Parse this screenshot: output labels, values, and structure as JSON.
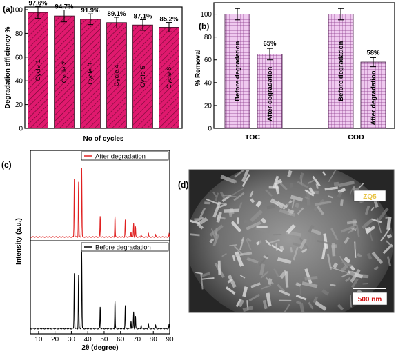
{
  "panel_a": {
    "label": "(a)",
    "chart_data": {
      "type": "bar",
      "categories": [
        "Cycle 1",
        "Cycle 2",
        "Cycle 3",
        "Cycle 4",
        "Cycle 5",
        "Cycle 6"
      ],
      "values": [
        97.6,
        94.7,
        91.9,
        89.1,
        87.1,
        85.2
      ],
      "errors": [
        5,
        5,
        4.5,
        4.5,
        4.5,
        4
      ],
      "data_labels": [
        "97.6%",
        "94.7%",
        "91.9%",
        "89.1%",
        "87.1%",
        "85.2%"
      ],
      "ylabel": "Degradation efficiency %",
      "xlabel": "No of cycles",
      "ylim": [
        0,
        100
      ],
      "yticks": [
        "0",
        "20",
        "40",
        "60",
        "80",
        "100"
      ],
      "bar_color": "#e0196e"
    }
  },
  "panel_b": {
    "label": "(b)",
    "chart_data": {
      "type": "bar",
      "categories": [
        "TOC",
        "COD"
      ],
      "series": [
        {
          "values": [
            100,
            100
          ],
          "bar_labels": [
            "Before degradation",
            "Before degradation"
          ]
        },
        {
          "values": [
            65,
            58
          ],
          "bar_labels": [
            "After degradation",
            "After degradation"
          ]
        }
      ],
      "errors": [
        5,
        4
      ],
      "data_labels": [
        "65%",
        "58%"
      ],
      "ylabel": "% Removal",
      "ylim": [
        0,
        110
      ],
      "yticks": [
        "0",
        "20",
        "40",
        "60",
        "80",
        "100"
      ],
      "bar_color": "#e8b6e8",
      "grid_color": "#7a3a7a"
    }
  },
  "panel_c": {
    "label": "(c)",
    "chart_data": {
      "type": "line",
      "ylabel": "Intensity (a.u.)",
      "xlabel": "2θ (degree)",
      "xlim": [
        5,
        90
      ],
      "xticks": [
        "10",
        "20",
        "30",
        "40",
        "50",
        "60",
        "70",
        "80",
        "90"
      ],
      "series": [
        {
          "name": "After degradation",
          "color": "#e02020",
          "peaks": [
            [
              31.8,
              0.85
            ],
            [
              34.4,
              0.8
            ],
            [
              36.3,
              1.0
            ],
            [
              47.6,
              0.3
            ],
            [
              56.6,
              0.3
            ],
            [
              62.9,
              0.25
            ],
            [
              66.4,
              0.08
            ],
            [
              68.0,
              0.2
            ],
            [
              69.1,
              0.15
            ],
            [
              72.6,
              0.04
            ],
            [
              77.0,
              0.06
            ],
            [
              81.4,
              0.03
            ],
            [
              89.6,
              0.04
            ]
          ]
        },
        {
          "name": "Before degradation",
          "color": "#000000",
          "peaks": [
            [
              31.8,
              0.72
            ],
            [
              34.4,
              0.7
            ],
            [
              36.3,
              1.0
            ],
            [
              47.6,
              0.28
            ],
            [
              56.6,
              0.36
            ],
            [
              62.9,
              0.3
            ],
            [
              66.4,
              0.1
            ],
            [
              68.0,
              0.22
            ],
            [
              69.1,
              0.16
            ],
            [
              72.6,
              0.05
            ],
            [
              77.0,
              0.07
            ],
            [
              81.4,
              0.04
            ],
            [
              89.6,
              0.05
            ]
          ]
        }
      ]
    }
  },
  "panel_d": {
    "label": "(d)",
    "sample_label": "ZQ5",
    "scale_label": "500 nm"
  }
}
